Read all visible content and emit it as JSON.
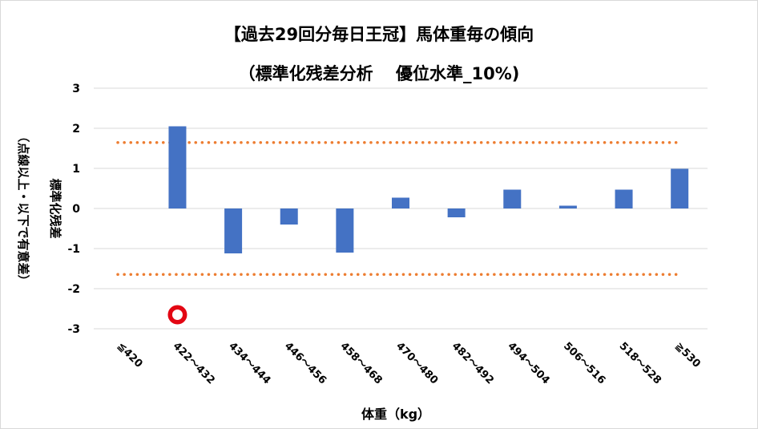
{
  "chart_data": {
    "type": "bar",
    "title": "【過去29回分毎日王冠】馬体重毎の傾向",
    "subtitle": "（標準化残差分析　 優位水準_10%)",
    "xlabel": "体重（kg）",
    "ylabel": "標準化残差",
    "ylabel_note": "（点線以上・以下で有意差）",
    "categories": [
      "≦420",
      "422～432",
      "434～444",
      "446～456",
      "458～468",
      "470～480",
      "482～492",
      "494～504",
      "506～516",
      "518～528",
      "≧530"
    ],
    "series": [
      {
        "values": [
          0,
          2.05,
          -1.12,
          -0.4,
          -1.1,
          0.27,
          -0.22,
          0.47,
          0.07,
          0.47,
          0.99
        ]
      }
    ],
    "ylim": [
      -3,
      3
    ],
    "yticks": [
      3,
      2,
      1,
      0,
      -1,
      -2,
      -3
    ],
    "threshold_lines": [
      1.645,
      -1.645
    ],
    "grid": true,
    "marker": {
      "category": "422～432",
      "y": -2.65,
      "shape": "circle"
    },
    "colors": {
      "bar": "#4472c4",
      "threshold": "#ed7d31",
      "grid": "#d9d9d9",
      "marker_ring": "#e30613"
    }
  }
}
